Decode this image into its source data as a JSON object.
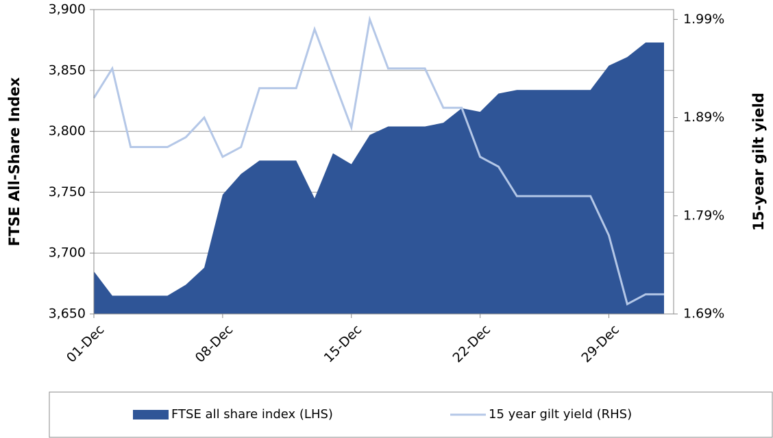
{
  "chart_data": {
    "type": "combo",
    "x_axis_type": "category",
    "categories": [
      "01-Dec",
      null,
      null,
      null,
      null,
      null,
      null,
      "08-Dec",
      null,
      null,
      null,
      null,
      null,
      null,
      "15-Dec",
      null,
      null,
      null,
      null,
      null,
      null,
      "22-Dec",
      null,
      null,
      null,
      null,
      null,
      null,
      "29-Dec",
      null,
      null,
      null
    ],
    "series": [
      {
        "name": "FTSE all share index (LHS)",
        "type": "area",
        "color": "#2f5597",
        "values": [
          3685,
          3665,
          3665,
          3665,
          3665,
          3674,
          3688,
          3748,
          3765,
          3776,
          3776,
          3776,
          3745,
          3782,
          3773,
          3797,
          3804,
          3804,
          3804,
          3807,
          3819,
          3816,
          3831,
          3834,
          3834,
          3834,
          3834,
          3834,
          3854,
          3861,
          3873,
          3873
        ]
      },
      {
        "name": "15 year gilt yield (RHS)",
        "type": "line",
        "axis": "y2",
        "color": "#b4c7e7",
        "values": [
          1.91,
          1.94,
          1.86,
          1.86,
          1.86,
          1.87,
          1.89,
          1.85,
          1.86,
          1.92,
          1.92,
          1.92,
          1.98,
          1.93,
          1.88,
          1.99,
          1.94,
          1.94,
          1.94,
          1.9,
          1.9,
          1.85,
          1.84,
          1.81,
          1.81,
          1.81,
          1.81,
          1.81,
          1.77,
          1.7,
          1.71,
          1.71
        ]
      }
    ],
    "y_label": "FTSE All-Share Index",
    "y2_label": "15-year gilt yield",
    "ylim": [
      3650,
      3900
    ],
    "yticks": [
      {
        "value": 3650,
        "label": "3,650"
      },
      {
        "value": 3700,
        "label": "3,700"
      },
      {
        "value": 3750,
        "label": "3,750"
      },
      {
        "value": 3800,
        "label": "3,800"
      },
      {
        "value": 3850,
        "label": "3,850"
      },
      {
        "value": 3900,
        "label": "3,900"
      }
    ],
    "y2lim": [
      1.69,
      2.0
    ],
    "y2ticks": [
      {
        "value": 1.69,
        "label": "1.69%"
      },
      {
        "value": 1.79,
        "label": "1.79%"
      },
      {
        "value": 1.89,
        "label": "1.89%"
      },
      {
        "value": 1.99,
        "label": "1.99%"
      }
    ],
    "grid": true,
    "legend": "bottom"
  }
}
